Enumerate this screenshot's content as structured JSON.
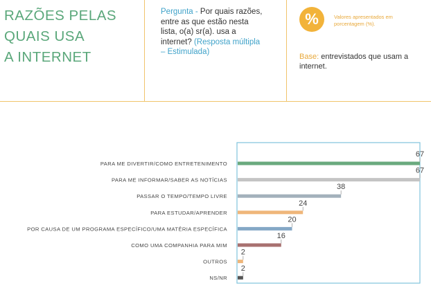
{
  "header": {
    "title_lines": [
      "RAZÕES PELAS",
      "QUAIS USA",
      "A INTERNET"
    ],
    "question_label": "Pergunta -",
    "question_text": "Por quais razões, entre as que estão nesta lista, o(a) sr(a). usa a internet?",
    "question_note": "(Resposta múltipla – Estimulada)",
    "badge_symbol": "%",
    "values_note": "Valores apresentados em porcentagem (%).",
    "base_label": "Base:",
    "base_text": "entrevistados que usam a internet."
  },
  "colors": {
    "title": "#5aa77a",
    "accent": "#3fa2c9",
    "badge": "#f2b33a",
    "divider": "#f0c46a",
    "frame": "#7fc3dc"
  },
  "chart_data": {
    "type": "bar",
    "orientation": "horizontal",
    "categories": [
      "PARA ME DIVERTIR/COMO ENTRETENIMENTO",
      "PARA ME INFORMAR/SABER AS NOTÍCIAS",
      "PASSAR O TEMPO/TEMPO LIVRE",
      "PARA ESTUDAR/APRENDER",
      "POR CAUSA DE UM PROGRAMA ESPECÍFICO/UMA MATÉRIA ESPECÍFICA",
      "COMO UMA COMPANHIA PARA MIM",
      "OUTROS",
      "NS/NR"
    ],
    "values": [
      67,
      67,
      38,
      24,
      20,
      16,
      2,
      2
    ],
    "bar_colors": [
      "#6aaa7e",
      "#c4c4c4",
      "#a3b1bb",
      "#efb67a",
      "#85a8c6",
      "#a87170",
      "#efb67a",
      "#555555"
    ],
    "xlim": [
      0,
      67
    ]
  }
}
